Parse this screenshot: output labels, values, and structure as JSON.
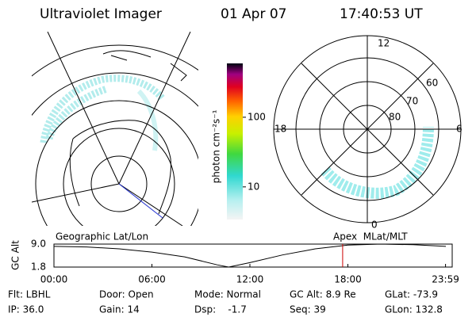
{
  "header": {
    "title": "Ultraviolet Imager",
    "date": "01 Apr 07",
    "time": "17:40:53 UT"
  },
  "left_panel": {
    "label": "Geographic Lat/Lon"
  },
  "right_panel": {
    "label": "Apex  MLat/MLT",
    "mlt_labels": [
      "12",
      "18",
      "6",
      "0"
    ],
    "mlat_labels": [
      "60",
      "70",
      "80"
    ]
  },
  "colorbar": {
    "label": "photon cm⁻²s⁻¹",
    "scale": "log",
    "lim": [
      3.4,
      593
    ],
    "ticks": [
      10,
      100
    ]
  },
  "altitude_plot": {
    "ylabel": "GC Alt",
    "ylim": [
      1.8,
      9.0
    ],
    "yticks": [
      {
        "value": 9.0,
        "label": "9.0"
      },
      1.8
    ],
    "xlim": [
      0,
      24
    ],
    "xticks": [
      {
        "value": 0,
        "label": "00:00"
      },
      {
        "value": 6,
        "label": "06:00"
      },
      {
        "value": 12,
        "label": "12:00"
      },
      {
        "value": 18,
        "label": "18:00"
      },
      {
        "value": 23.98,
        "label": "23:59"
      }
    ],
    "x": [
      0,
      2,
      4,
      6,
      8,
      10,
      10.7,
      12,
      14,
      16,
      18,
      20,
      22,
      24
    ],
    "values": [
      8.3,
      8.1,
      7.5,
      6.5,
      5.0,
      2.5,
      1.8,
      3.2,
      5.6,
      7.5,
      8.7,
      9.0,
      8.8,
      8.3
    ],
    "color": "#000000",
    "current_time": 17.68,
    "current_color": "#cc0000"
  },
  "footer": [
    [
      "Flt: LBHL",
      "Door: Open",
      "Mode: Normal",
      "GC Alt: 8.9 Re",
      "GLat: -73.9"
    ],
    [
      "IP: 36.0",
      "Gain: 14",
      "Dsp:    -1.7",
      "Seq: 39",
      "GLon: 132.8"
    ]
  ]
}
